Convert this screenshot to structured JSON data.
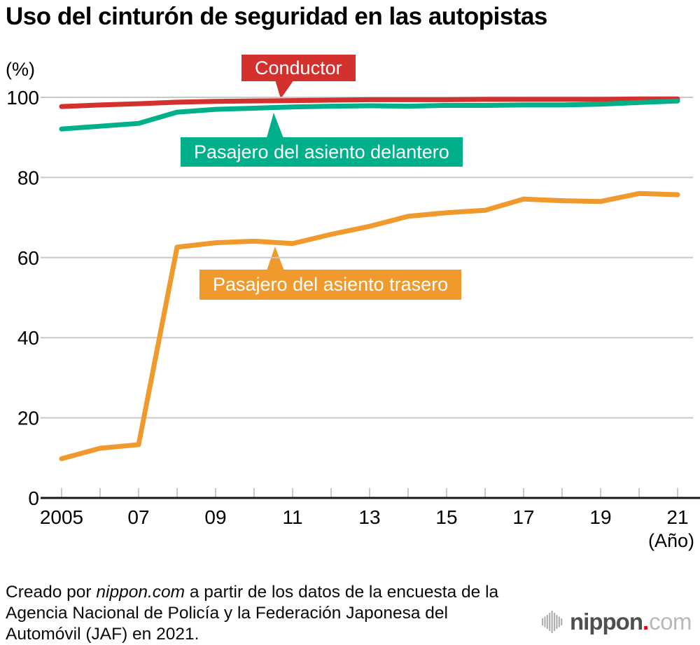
{
  "title": "Uso del cinturón de seguridad en las autopistas",
  "y_axis_unit": "(%)",
  "x_axis_unit": "(Año)",
  "chart_data": {
    "type": "line",
    "x": [
      2005,
      2006,
      2007,
      2008,
      2009,
      2010,
      2011,
      2012,
      2013,
      2014,
      2015,
      2016,
      2017,
      2018,
      2019,
      2020,
      2021
    ],
    "xtick_labels": [
      {
        "year": 2005,
        "label": "2005"
      },
      {
        "year": 2007,
        "label": "07"
      },
      {
        "year": 2009,
        "label": "09"
      },
      {
        "year": 2011,
        "label": "11"
      },
      {
        "year": 2013,
        "label": "13"
      },
      {
        "year": 2015,
        "label": "15"
      },
      {
        "year": 2017,
        "label": "17"
      },
      {
        "year": 2019,
        "label": "19"
      },
      {
        "year": 2021,
        "label": "21"
      }
    ],
    "yticks": [
      0,
      20,
      40,
      60,
      80,
      100
    ],
    "ylim": [
      0,
      100
    ],
    "grid": "horizontal",
    "legend_position": "callouts-on-lines",
    "series": [
      {
        "name": "Conductor",
        "color": "#d2312d",
        "values": [
          97.7,
          98.1,
          98.4,
          98.8,
          99.0,
          99.1,
          99.2,
          99.3,
          99.4,
          99.4,
          99.4,
          99.5,
          99.5,
          99.5,
          99.5,
          99.6,
          99.6
        ]
      },
      {
        "name": "Pasajero del asiento delantero",
        "color": "#00b08b",
        "values": [
          92.1,
          92.8,
          93.5,
          96.3,
          97.0,
          97.3,
          97.6,
          97.8,
          97.9,
          97.8,
          98.0,
          98.0,
          98.1,
          98.1,
          98.3,
          98.7,
          99.1
        ]
      },
      {
        "name": "Pasajero del asiento trasero",
        "color": "#f0992d",
        "values": [
          9.8,
          12.4,
          13.3,
          62.6,
          63.7,
          64.1,
          63.5,
          65.8,
          67.8,
          70.3,
          71.2,
          71.8,
          74.6,
          74.2,
          74.0,
          76.0,
          75.7
        ]
      }
    ]
  },
  "colors": {
    "grid": "#c9c9c9",
    "axis": "#1a1a1a",
    "logo_bars": "#adadad",
    "logo_brand": "#4f4f4f",
    "logo_dot": "#e60012",
    "logo_tld": "#b9b9b9"
  },
  "footer": {
    "line1_pre": "Creado por ",
    "brand": "nippon.com",
    "line1_post": " a partir de los datos de la encuesta de la",
    "line2": "Agencia Nacional de Policía y la Federación Japonesa del",
    "line3": "Automóvil (JAF) en 2021."
  },
  "logo": {
    "brand": "nippon",
    "dot": ".",
    "tld": "com"
  }
}
